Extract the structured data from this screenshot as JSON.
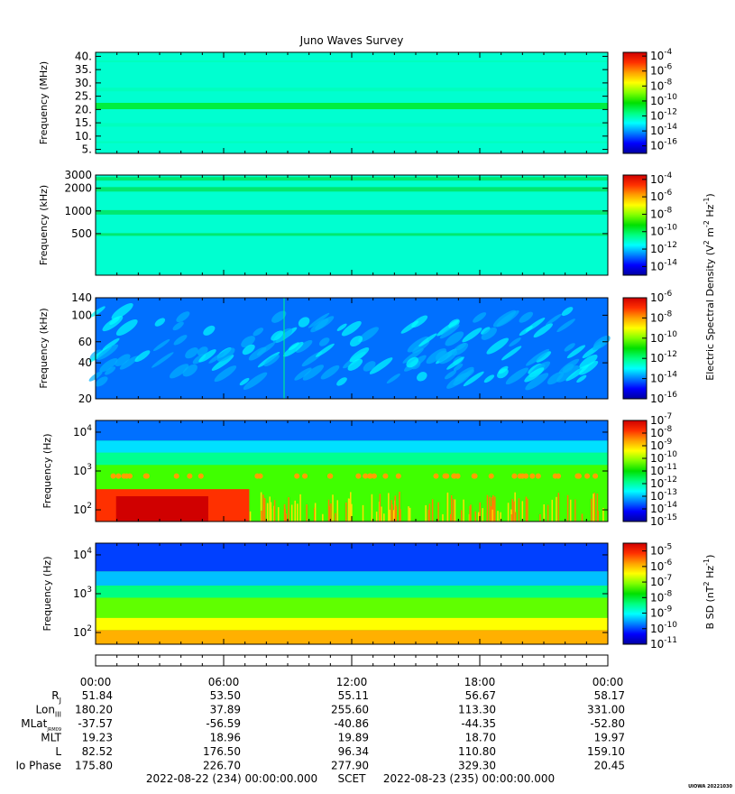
{
  "title": "Juno Waves Survey",
  "chart_data": [
    {
      "type": "heatmap",
      "ylabel": "Frequency (MHz)",
      "yscale": "linear",
      "ylim": [
        3.5,
        41.5
      ],
      "yticks": [
        "5.",
        "10.",
        "15.",
        "20.",
        "25.",
        "30.",
        "35.",
        "40."
      ],
      "ytick_values": [
        5,
        10,
        15,
        20,
        25,
        30,
        35,
        40
      ],
      "colorbar": {
        "ticks": [
          "10-4",
          "10-6",
          "10-8",
          "10-10",
          "10-12",
          "10-14",
          "10-16"
        ],
        "exponents": [
          -4,
          -6,
          -8,
          -10,
          -12,
          -14,
          -16
        ],
        "range": [
          -17,
          -3.5
        ]
      }
    },
    {
      "type": "heatmap",
      "ylabel": "Frequency (kHz)",
      "yscale": "log",
      "ylim": [
        140,
        3000
      ],
      "yticks": [
        "3000",
        "2000",
        "1000",
        "500"
      ],
      "ytick_values": [
        3000,
        2000,
        1000,
        500
      ],
      "colorbar": {
        "ticks": [
          "10-4",
          "10-6",
          "10-8",
          "10-10",
          "10-12",
          "10-14"
        ],
        "exponents": [
          -4,
          -6,
          -8,
          -10,
          -12,
          -14
        ],
        "range": [
          -15,
          -3.5
        ]
      }
    },
    {
      "type": "heatmap",
      "ylabel": "Frequency (kHz)",
      "yscale": "log",
      "ylim": [
        20,
        140
      ],
      "yticks": [
        "140",
        "100",
        "60",
        "40",
        "20"
      ],
      "ytick_values": [
        140,
        100,
        60,
        40,
        20
      ],
      "colorbar": {
        "ticks": [
          "10-6",
          "10-8",
          "10-10",
          "10-12",
          "10-14",
          "10-16"
        ],
        "exponents": [
          -6,
          -8,
          -10,
          -12,
          -14,
          -16
        ],
        "range": [
          -16,
          -6
        ]
      }
    },
    {
      "type": "heatmap",
      "ylabel": "Frequency (Hz)",
      "yscale": "log",
      "ylim": [
        50,
        20000
      ],
      "yticks": [
        "10",
        "10",
        "10"
      ],
      "ytick_exponents": [
        "4",
        "3",
        "2"
      ],
      "ytick_values": [
        10000,
        1000,
        100
      ],
      "colorbar": {
        "ticks": [
          "10-7",
          "10-8",
          "10-9",
          "10-10",
          "10-11",
          "10-12",
          "10-13",
          "10-14",
          "10-15"
        ],
        "exponents": [
          -7,
          -8,
          -9,
          -10,
          -11,
          -12,
          -13,
          -14,
          -15
        ],
        "range": [
          -15,
          -7
        ]
      }
    },
    {
      "type": "heatmap",
      "ylabel": "Frequency (Hz)",
      "yscale": "log",
      "ylim": [
        50,
        20000
      ],
      "yticks": [
        "10",
        "10",
        "10"
      ],
      "ytick_exponents": [
        "4",
        "3",
        "2"
      ],
      "ytick_values": [
        10000,
        1000,
        100
      ],
      "colorbar": {
        "ticks": [
          "10-5",
          "10-6",
          "10-7",
          "10-8",
          "10-9",
          "10-10",
          "10-11"
        ],
        "exponents": [
          -5,
          -6,
          -7,
          -8,
          -9,
          -10,
          -11
        ],
        "range": [
          -11,
          -4.5
        ]
      }
    }
  ],
  "colorbar_labels": {
    "electric": [
      "Electric Spectral Density (V",
      "2",
      " m",
      "-2",
      " Hz",
      "-1",
      ")"
    ],
    "magnetic": [
      "B SD (nT",
      "2",
      " Hz",
      "-1",
      ")"
    ]
  },
  "colors": {
    "colormap": [
      "#0000a0",
      "#0000ff",
      "#0080ff",
      "#00ffff",
      "#00ff80",
      "#00e000",
      "#80ff00",
      "#ffff00",
      "#ffa000",
      "#ff3000",
      "#d00000"
    ]
  },
  "xaxis": {
    "times": [
      "00:00",
      "06:00",
      "12:00",
      "18:00",
      "00:00"
    ],
    "time_values_hours": [
      0,
      6,
      12,
      18,
      24
    ],
    "rows": [
      {
        "label": "R",
        "sub": "J",
        "values": [
          "51.84",
          "53.50",
          "55.11",
          "56.67",
          "58.17"
        ]
      },
      {
        "label": "Lon",
        "sub": "III",
        "values": [
          "180.20",
          "37.89",
          "255.60",
          "113.30",
          "331.00"
        ]
      },
      {
        "label": "MLat",
        "sub": "JRM09",
        "values": [
          "-37.57",
          "-56.59",
          "-40.86",
          "-44.35",
          "-52.80"
        ]
      },
      {
        "label": "MLT",
        "sub": "",
        "values": [
          "19.23",
          "18.96",
          "19.89",
          "18.70",
          "19.97"
        ]
      },
      {
        "label": "L",
        "sub": "",
        "values": [
          "82.52",
          "176.50",
          "96.34",
          "110.80",
          "159.10"
        ]
      },
      {
        "label": "Io Phase",
        "sub": "",
        "values": [
          "175.80",
          "226.70",
          "277.90",
          "329.30",
          "20.45"
        ]
      }
    ],
    "footer_left": "2022-08-22 (234) 00:00:00.000",
    "footer_mid": "SCET",
    "footer_right": "2022-08-23 (235) 00:00:00.000"
  },
  "stamp": "UIOWA 20221030"
}
